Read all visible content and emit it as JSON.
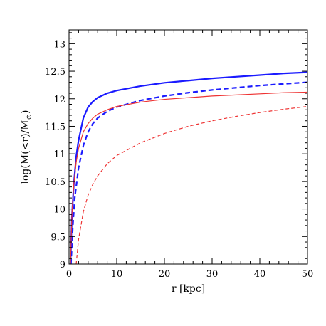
{
  "chart_data": {
    "type": "line",
    "title": "",
    "xlabel": "r [kpc]",
    "ylabel": "log(M(<r)/M",
    "ylabel_subscript": "⊙",
    "ylabel_close": ")",
    "xlim": [
      0,
      50
    ],
    "ylim": [
      9,
      13.25
    ],
    "x_ticks": [
      "0",
      "10",
      "20",
      "30",
      "40",
      "50"
    ],
    "y_ticks": [
      "9",
      "9.5",
      "10",
      "10.5",
      "11",
      "11.5",
      "12",
      "12.5",
      "13"
    ],
    "x_tick_values": [
      0,
      10,
      20,
      30,
      40,
      50
    ],
    "y_tick_values": [
      9,
      9.5,
      10,
      10.5,
      11,
      11.5,
      12,
      12.5,
      13
    ],
    "grid": false,
    "series": [
      {
        "color": "#1a1aff",
        "style": "solid",
        "weight": "thick",
        "x": [
          0.3,
          0.6,
          1,
          1.5,
          2,
          3,
          4,
          5,
          6,
          8,
          10,
          15,
          20,
          25,
          30,
          35,
          40,
          45,
          50
        ],
        "y": [
          9.0,
          9.85,
          10.45,
          10.95,
          11.25,
          11.65,
          11.85,
          11.95,
          12.02,
          12.1,
          12.15,
          12.23,
          12.29,
          12.33,
          12.37,
          12.4,
          12.43,
          12.46,
          12.48
        ]
      },
      {
        "color": "#1a1aff",
        "style": "dashed",
        "weight": "thick",
        "x": [
          0.4,
          0.8,
          1.2,
          2,
          3,
          4,
          5,
          6,
          8,
          10,
          15,
          20,
          25,
          30,
          35,
          40,
          45,
          50
        ],
        "y": [
          9.0,
          9.7,
          10.2,
          10.75,
          11.15,
          11.4,
          11.55,
          11.65,
          11.77,
          11.85,
          11.97,
          12.05,
          12.11,
          12.16,
          12.2,
          12.24,
          12.27,
          12.3
        ]
      },
      {
        "color": "#ee3333",
        "style": "solid",
        "weight": "thin",
        "x": [
          0.3,
          0.6,
          1,
          1.5,
          2,
          3,
          4,
          5,
          6,
          8,
          10,
          15,
          20,
          25,
          30,
          35,
          40,
          45,
          50
        ],
        "y": [
          9.0,
          9.9,
          10.45,
          10.85,
          11.1,
          11.4,
          11.55,
          11.65,
          11.72,
          11.8,
          11.86,
          11.94,
          11.99,
          12.02,
          12.05,
          12.07,
          12.09,
          12.11,
          12.12
        ]
      },
      {
        "color": "#ee3333",
        "style": "dashed",
        "weight": "thin",
        "x": [
          1.5,
          2,
          3,
          4,
          5,
          6,
          8,
          10,
          15,
          20,
          25,
          30,
          35,
          40,
          45,
          50
        ],
        "y": [
          9.0,
          9.45,
          9.95,
          10.25,
          10.45,
          10.6,
          10.82,
          10.97,
          11.2,
          11.37,
          11.5,
          11.6,
          11.68,
          11.75,
          11.81,
          11.86
        ]
      }
    ]
  }
}
